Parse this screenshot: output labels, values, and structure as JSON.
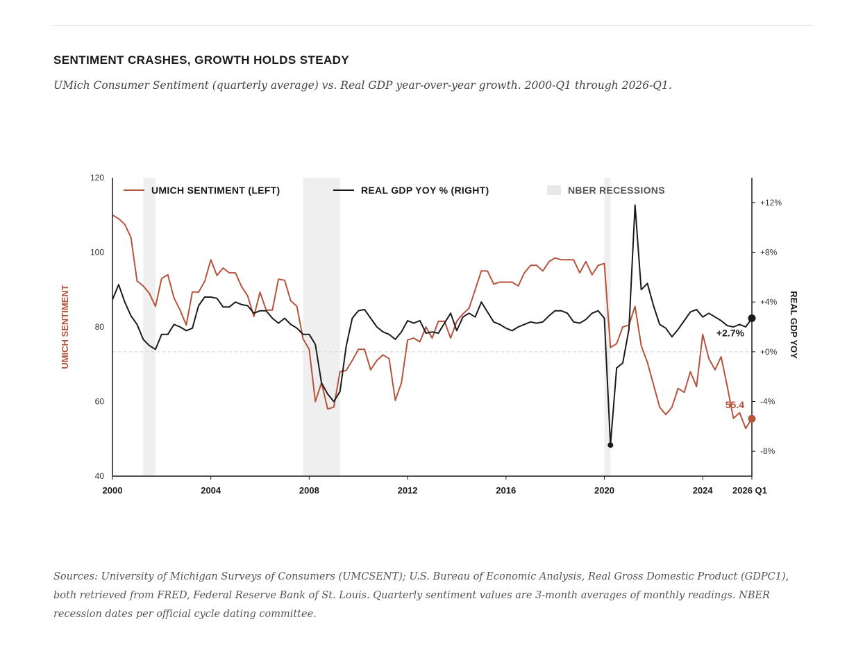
{
  "header": {
    "title": "SENTIMENT CRASHES, GROWTH HOLDS STEADY",
    "subtitle": "UMich Consumer Sentiment (quarterly average) vs. Real GDP year-over-year growth. 2000-Q1 through 2026-Q1."
  },
  "footer": {
    "source": "Sources: University of Michigan Surveys of Consumers (UMCSENT); U.S. Bureau of Economic Analysis, Real Gross Domestic Product (GDPC1), both retrieved from FRED, Federal Reserve Bank of St. Louis. Quarterly sentiment values are 3-month averages of monthly readings. NBER recession dates per official cycle dating committee."
  },
  "colors": {
    "sentiment": "#b5533c",
    "gdp": "#1a1a1a",
    "recession": "#efefef",
    "zero_line": "#cccccc",
    "axis": "#1a1a1a"
  },
  "chart_data": {
    "type": "line",
    "x_start": 2000.0,
    "x_step": 0.25,
    "xlim": [
      2000,
      2026
    ],
    "x_ticks": [
      2000,
      2004,
      2008,
      2012,
      2016,
      2020,
      2024,
      2026
    ],
    "x_tick_labels": [
      "2000",
      "2004",
      "2008",
      "2012",
      "2016",
      "2020",
      "2024",
      "2026 Q1"
    ],
    "left_axis": {
      "label": "UMICH SENTIMENT",
      "lim": [
        40,
        120
      ],
      "ticks": [
        40,
        60,
        80,
        100,
        120
      ],
      "tick_labels": [
        "40",
        "60",
        "80",
        "100",
        "120"
      ]
    },
    "right_axis": {
      "label": "REAL GDP YOY",
      "lim": [
        -10,
        14
      ],
      "ticks": [
        12,
        8,
        4,
        0,
        -4,
        -8
      ],
      "tick_labels": [
        "+12%",
        "+8%",
        "+4%",
        "+0%",
        "-4%",
        "-8%"
      ]
    },
    "legend": [
      "UMICH SENTIMENT (LEFT)",
      "REAL GDP YOY % (RIGHT)",
      "NBER RECESSIONS"
    ],
    "legend_position": "top",
    "recessions": [
      [
        2001.25,
        2001.75
      ],
      [
        2007.75,
        2009.25
      ],
      [
        2020.0,
        2020.25
      ]
    ],
    "series": [
      {
        "name": "UMICH SENTIMENT (LEFT)",
        "axis": "left",
        "values": [
          110.0,
          109.0,
          107.5,
          104.0,
          92.3,
          91.0,
          89.0,
          85.5,
          93.0,
          94.0,
          87.8,
          84.5,
          80.5,
          89.4,
          89.3,
          92.2,
          98.0,
          93.8,
          95.8,
          94.5,
          94.5,
          90.8,
          88.3,
          82.8,
          89.3,
          84.5,
          84.5,
          92.8,
          92.5,
          87.0,
          85.5,
          76.8,
          74.0,
          60.0,
          65.0,
          58.0,
          58.5,
          68.0,
          68.3,
          71.0,
          74.0,
          74.0,
          68.5,
          71.0,
          72.5,
          71.5,
          60.3,
          65.0,
          76.5,
          77.0,
          76.0,
          80.0,
          77.0,
          81.5,
          81.5,
          77.0,
          81.5,
          83.5,
          85.0,
          90.0,
          95.0,
          95.0,
          91.5,
          92.0,
          92.0,
          92.0,
          91.0,
          94.5,
          96.5,
          96.5,
          95.0,
          97.5,
          98.5,
          98.0,
          98.0,
          98.0,
          94.5,
          97.5,
          94.0,
          96.5,
          97.0,
          74.5,
          75.5,
          80.0,
          80.5,
          85.5,
          75.0,
          70.5,
          64.5,
          58.5,
          56.5,
          58.5,
          63.5,
          62.5,
          68.0,
          64.0,
          78.0,
          71.5,
          68.5,
          72.0,
          64.0,
          55.5,
          57.0,
          52.8,
          55.4
        ]
      },
      {
        "name": "REAL GDP YOY % (RIGHT)",
        "axis": "right",
        "values": [
          4.2,
          5.4,
          4.0,
          2.9,
          2.2,
          1.0,
          0.5,
          0.2,
          1.4,
          1.4,
          2.2,
          2.0,
          1.7,
          1.9,
          3.7,
          4.4,
          4.4,
          4.3,
          3.6,
          3.6,
          4.0,
          3.8,
          3.7,
          3.1,
          3.3,
          3.3,
          2.7,
          2.3,
          2.7,
          2.2,
          1.9,
          1.4,
          1.4,
          0.6,
          -2.5,
          -3.4,
          -4.0,
          -3.2,
          0.4,
          2.7,
          3.3,
          3.4,
          2.7,
          2.0,
          1.6,
          1.4,
          1.0,
          1.6,
          2.5,
          2.3,
          2.5,
          1.5,
          1.6,
          1.5,
          2.3,
          3.1,
          1.7,
          2.8,
          3.1,
          2.8,
          4.0,
          3.2,
          2.4,
          2.2,
          1.9,
          1.7,
          2.0,
          2.2,
          2.4,
          2.3,
          2.4,
          2.9,
          3.3,
          3.3,
          3.1,
          2.4,
          2.3,
          2.6,
          3.1,
          3.3,
          2.7,
          -7.5,
          -1.3,
          -0.9,
          1.8,
          11.8,
          5.0,
          5.5,
          3.7,
          2.2,
          1.9,
          1.2,
          1.8,
          2.5,
          3.2,
          3.4,
          2.8,
          3.1,
          2.8,
          2.5,
          2.1,
          2.0,
          2.2,
          2.0,
          2.7
        ]
      }
    ],
    "annotations": [
      {
        "series": 0,
        "text": "55.4",
        "x": 2026.0,
        "y": 55.4
      },
      {
        "series": 1,
        "text": "+2.7%",
        "x": 2026.0,
        "y": 2.7
      },
      {
        "series": 1,
        "marker_only": true,
        "x": 2020.25,
        "y": -7.5
      }
    ]
  }
}
